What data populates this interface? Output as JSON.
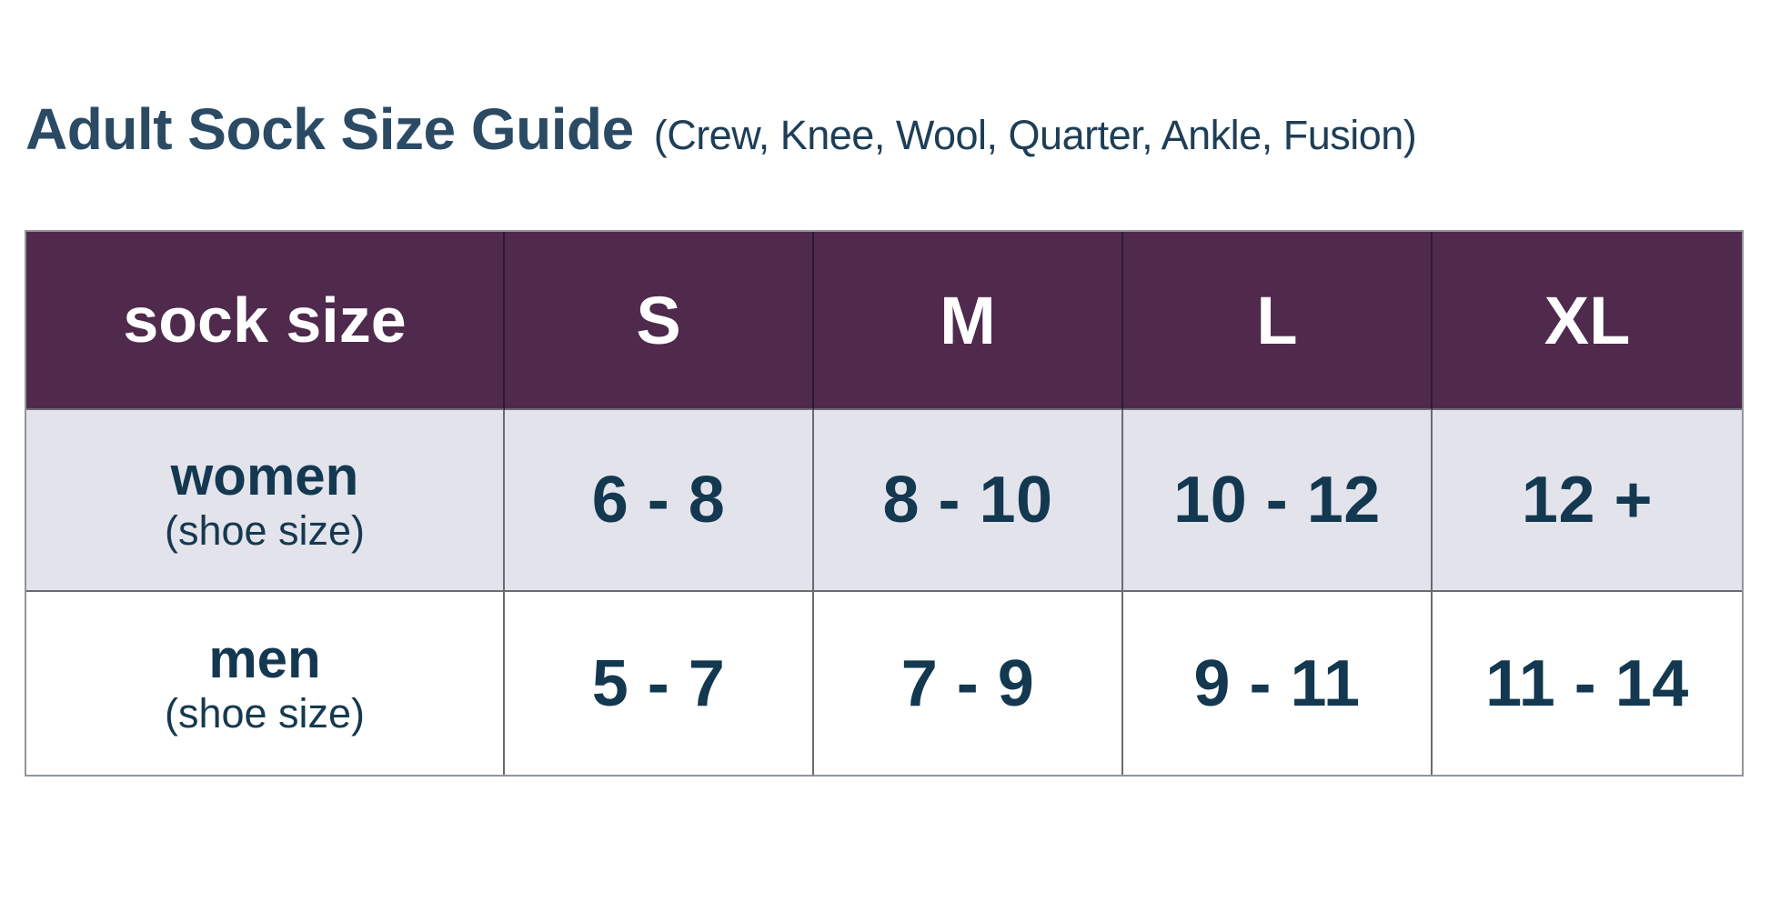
{
  "chart_data": {
    "type": "table",
    "title": "Adult Sock Size Guide",
    "subtitle": "(Crew, Knee, Wool, Quarter, Ankle, Fusion)",
    "columns": [
      "sock size",
      "S",
      "M",
      "L",
      "XL"
    ],
    "rows": [
      {
        "label": "women",
        "sublabel": "(shoe size)",
        "values": [
          "6 - 8",
          "8 - 10",
          "10 - 12",
          "12 +"
        ]
      },
      {
        "label": "men",
        "sublabel": "(shoe size)",
        "values": [
          "5 - 7",
          "7 - 9",
          "9 - 11",
          "11 - 14"
        ]
      }
    ],
    "layout_hints": {
      "header_bg": "#4f2a4d",
      "header_text_color": "#ffffff",
      "alt_row_bg": "#e3e3ec",
      "row_bg": "#ffffff",
      "body_text_color": "#133850",
      "title_color": "#2b4a64",
      "grid_on": true
    }
  }
}
